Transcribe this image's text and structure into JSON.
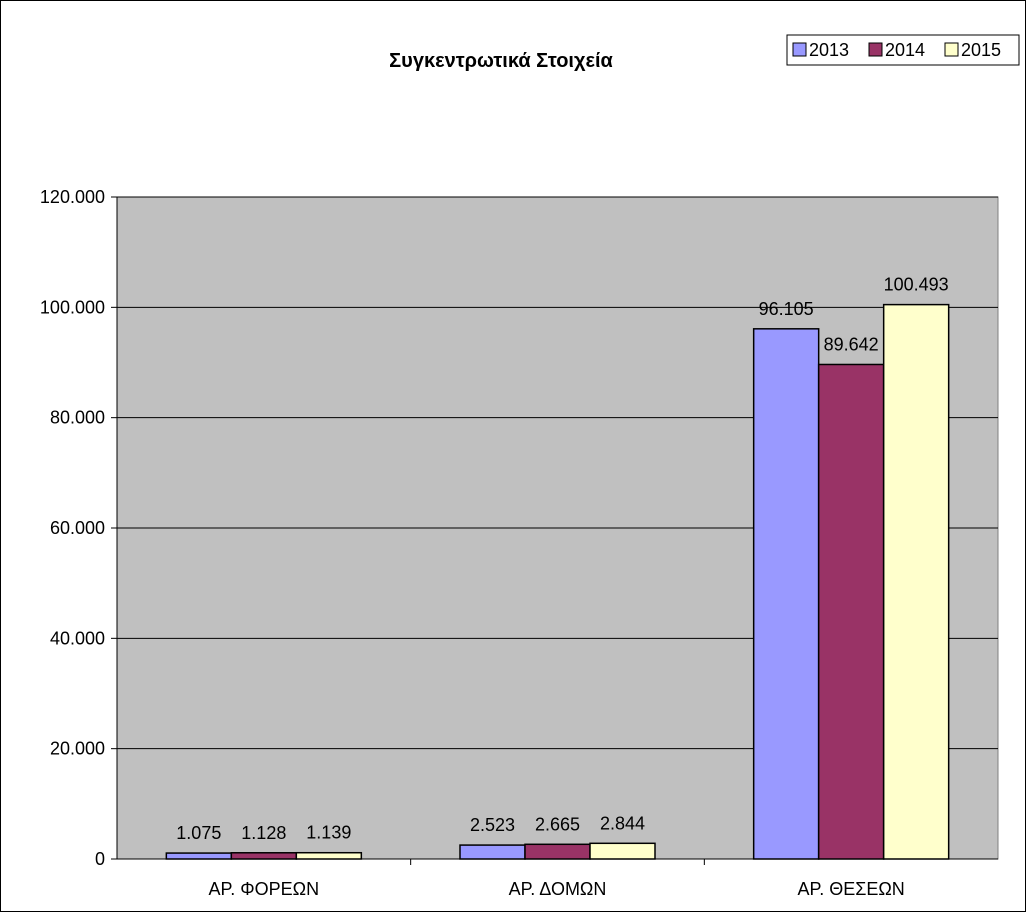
{
  "chart_data": {
    "type": "bar",
    "title": "Συγκεντρωτικά Στοιχεία",
    "xlabel": "",
    "ylabel": "",
    "categories": [
      "ΑΡ. ΦΟΡΕΩΝ",
      "ΑΡ. ΔΟΜΩΝ",
      "ΑΡ. ΘΕΣΕΩΝ"
    ],
    "series": [
      {
        "name": "2013",
        "color": "#9999ff",
        "values": [
          1075,
          2523,
          96105
        ],
        "labels": [
          "1.075",
          "2.523",
          "96.105"
        ]
      },
      {
        "name": "2014",
        "color": "#993366",
        "values": [
          1128,
          2665,
          89642
        ],
        "labels": [
          "1.128",
          "2.665",
          "89.642"
        ]
      },
      {
        "name": "2015",
        "color": "#ffffcc",
        "values": [
          1139,
          2844,
          100493
        ],
        "labels": [
          "1.139",
          "2.844",
          "100.493"
        ]
      }
    ],
    "ylim": [
      0,
      120000
    ],
    "yticks": [
      0,
      20000,
      40000,
      60000,
      80000,
      100000,
      120000
    ],
    "ytick_labels": [
      "0",
      "20.000",
      "40.000",
      "60.000",
      "80.000",
      "100.000",
      "120.000"
    ],
    "grid": true,
    "legend_position": "top-right",
    "plot_background": "#c0c0c0"
  }
}
